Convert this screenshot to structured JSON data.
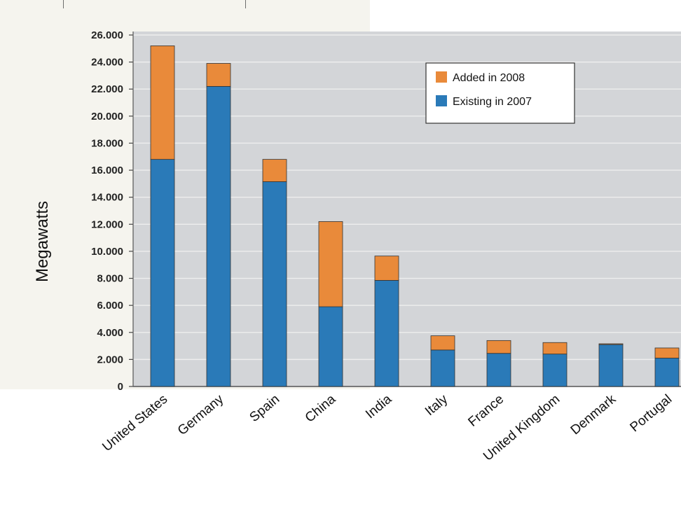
{
  "chart_data": {
    "type": "bar",
    "stacked": true,
    "title": "",
    "xlabel": "",
    "ylabel": "Megawatts",
    "ylim": [
      0,
      26000
    ],
    "yticks": [
      0,
      2000,
      4000,
      6000,
      8000,
      10000,
      12000,
      14000,
      16000,
      18000,
      20000,
      22000,
      24000,
      26000
    ],
    "ytick_labels": [
      "0",
      "2.000",
      "4.000",
      "6.000",
      "8.000",
      "10.000",
      "12.000",
      "14.000",
      "16.000",
      "18.000",
      "20.000",
      "22.000",
      "24.000",
      "26.000"
    ],
    "grid": true,
    "legend_position": "top-right",
    "categories": [
      "United States",
      "Germany",
      "Spain",
      "China",
      "India",
      "Italy",
      "France",
      "United Kingdom",
      "Denmark",
      "Portugal"
    ],
    "series": [
      {
        "name": "Existing in 2007",
        "color": "#2a7ab8",
        "values": [
          16800,
          22200,
          15150,
          5900,
          7850,
          2700,
          2450,
          2400,
          3100,
          2100
        ]
      },
      {
        "name": "Added in 2008",
        "color": "#e98a3a",
        "values": [
          8400,
          1700,
          1650,
          6300,
          1800,
          1050,
          950,
          850,
          60,
          750
        ]
      }
    ],
    "legend_order": [
      "Added in 2008",
      "Existing in 2007"
    ]
  }
}
